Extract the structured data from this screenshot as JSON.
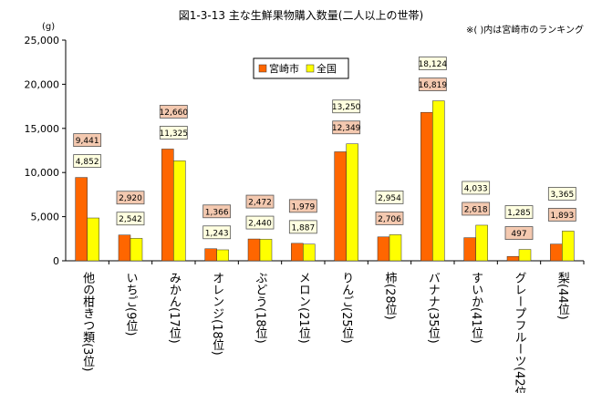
{
  "title": "図1-3-13 主な生鮮果物購入数量(二人以上の世帯)",
  "note": "※( )内は宮崎市のランキング",
  "chart_data": {
    "type": "bar",
    "unit": "(g)",
    "ylim": [
      0,
      25000
    ],
    "yticks": [
      "0",
      "5,000",
      "10,000",
      "15,000",
      "20,000",
      "25,000"
    ],
    "categories": [
      "他の柑きつ類(3位)",
      "いちご(9位)",
      "みかん(17位)",
      "オレンジ(18位)",
      "ぶどう(18位)",
      "メロン(21位)",
      "りんご(25位)",
      "柿(28位)",
      "バナナ(35位)",
      "すいか(41位)",
      "グレープフルーツ(42位)",
      "梨(44位)"
    ],
    "series": [
      {
        "name": "宮崎市",
        "color": "#FF6600",
        "values": [
          9441,
          2920,
          12660,
          1366,
          2472,
          1979,
          12349,
          2706,
          16819,
          2618,
          497,
          1893
        ],
        "labels": [
          "9,441",
          "2,920",
          "12,660",
          "1,366",
          "2,472",
          "1,979",
          "12,349",
          "2,706",
          "16,819",
          "2,618",
          "497",
          "1,893"
        ]
      },
      {
        "name": "全国",
        "color": "#FFFF00",
        "values": [
          4852,
          2542,
          11325,
          1243,
          2440,
          1887,
          13250,
          2954,
          18124,
          4033,
          1285,
          3365
        ],
        "labels": [
          "4,852",
          "2,542",
          "11,325",
          "1,243",
          "2,440",
          "1,887",
          "13,250",
          "2,954",
          "18,124",
          "4,033",
          "1,285",
          "3,365"
        ]
      }
    ],
    "legend_position": "top-left"
  }
}
